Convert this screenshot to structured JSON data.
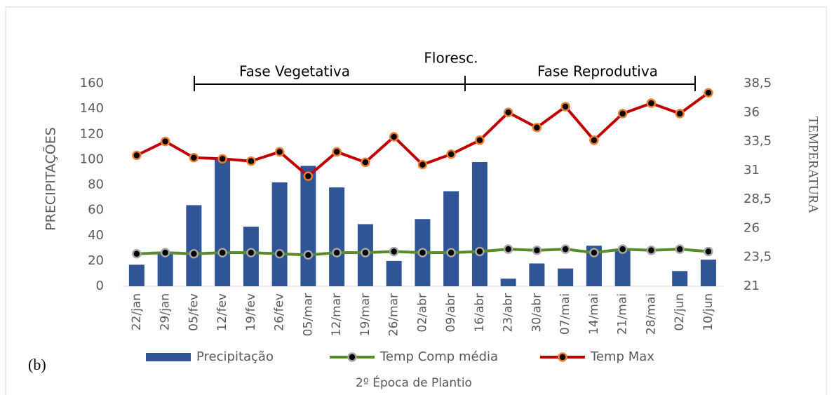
{
  "chart_data": {
    "type": "combo",
    "annotations": [
      "Fase Vegetativa",
      "Floresc.",
      "Fase Reprodutiva"
    ],
    "panel_label": "(b)",
    "caption": "2º Época de Plantio",
    "ylabel": "PRECIPITAÇÕES",
    "y2label": "TEMPERATURA",
    "categories": [
      "22/jan",
      "29/jan",
      "05/fev",
      "12/fev",
      "19/fev",
      "26/fev",
      "05/mar",
      "12/mar",
      "19/mar",
      "26/mar",
      "02/abr",
      "09/abr",
      "16/abr",
      "23/abr",
      "30/abr",
      "07/mai",
      "14/mai",
      "21/mai",
      "28/mai",
      "02/jun",
      "10/jun"
    ],
    "series": [
      {
        "name": "Precipitação",
        "type": "bar",
        "color": "#2f5597",
        "values": [
          17,
          27,
          64,
          100,
          47,
          82,
          95,
          78,
          49,
          20,
          53,
          75,
          98,
          6,
          18,
          14,
          32,
          28,
          0,
          12,
          21
        ]
      },
      {
        "name": "Temp Comp média",
        "type": "line",
        "axis": "y2",
        "color": "#5a8a2e",
        "marker_edge": "#a6a6a6",
        "values": [
          23.8,
          23.9,
          23.8,
          23.9,
          23.9,
          23.8,
          23.7,
          23.9,
          23.9,
          24.0,
          23.9,
          23.9,
          24.0,
          24.2,
          24.1,
          24.2,
          23.9,
          24.2,
          24.1,
          24.2,
          24.0
        ]
      },
      {
        "name": "Temp Max",
        "type": "line",
        "axis": "y2",
        "color": "#c00000",
        "marker_edge": "#ed7d31",
        "values": [
          32.3,
          33.5,
          32.1,
          32.0,
          31.8,
          32.6,
          30.5,
          32.6,
          31.7,
          33.9,
          31.5,
          32.4,
          33.6,
          36.0,
          34.7,
          36.5,
          33.6,
          35.9,
          36.8,
          35.9,
          37.7
        ]
      }
    ],
    "ylim": [
      0,
      160
    ],
    "yticks": [
      0,
      20,
      40,
      60,
      80,
      100,
      120,
      140,
      160
    ],
    "y2lim": [
      21,
      38.5
    ],
    "y2ticks": [
      21,
      {
        "value": 23.5,
        "label": "23,5"
      },
      26,
      {
        "value": 28.5,
        "label": "28,5"
      },
      31,
      {
        "value": 33.5,
        "label": "33,5"
      },
      36,
      {
        "value": 38.5,
        "label": "38,5"
      }
    ]
  }
}
